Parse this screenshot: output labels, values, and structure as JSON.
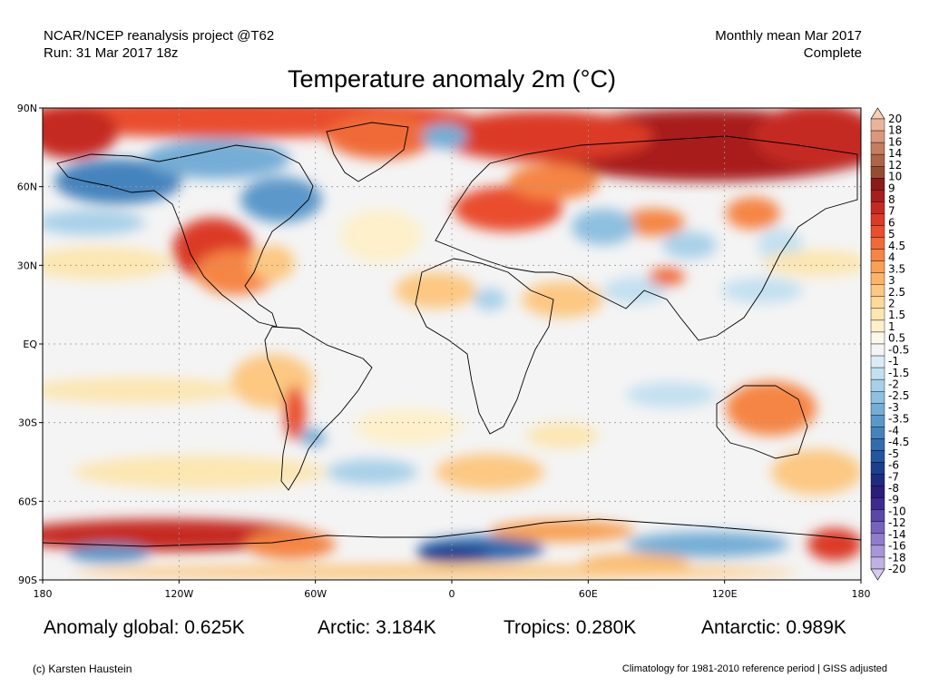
{
  "header": {
    "left_line1": "NCAR/NCEP reanalysis project @T62",
    "left_line2": "Run: 31 Mar 2017 18z",
    "right_line1": "Monthly mean Mar 2017",
    "right_line2": "Complete"
  },
  "title": "Temperature anomaly 2m (°C)",
  "map": {
    "lat_ticks": [
      "90N",
      "60N",
      "30N",
      "EQ",
      "30S",
      "60S",
      "90S"
    ],
    "lon_ticks": [
      "180",
      "120W",
      "60W",
      "0",
      "60E",
      "120E",
      "180"
    ],
    "colors": {
      "ocean_neutral": "#f4f4f4",
      "coast": "#000000",
      "grid": "#999999"
    }
  },
  "colorbar": {
    "levels": [
      "20",
      "18",
      "16",
      "14",
      "12",
      "10",
      "9",
      "8",
      "7",
      "6",
      "5",
      "4.5",
      "4",
      "3.5",
      "3",
      "2.5",
      "2",
      "1.5",
      "1",
      "0.5",
      "-0.5",
      "-1",
      "-1.5",
      "-2",
      "-2.5",
      "-3",
      "-3.5",
      "-4",
      "-4.5",
      "-5",
      "-6",
      "-7",
      "-8",
      "-9",
      "-10",
      "-12",
      "-14",
      "-16",
      "-18",
      "-20"
    ],
    "colors": [
      "#f6cdb5",
      "#eab49a",
      "#d9987c",
      "#c47d5f",
      "#ae6446",
      "#964c32",
      "#8b1a1a",
      "#a81d1d",
      "#c52a22",
      "#db3a26",
      "#e94e2d",
      "#f06a37",
      "#f58544",
      "#f8a055",
      "#fbb56a",
      "#fcc882",
      "#fdd99a",
      "#fce6b1",
      "#fdf0cb",
      "#fbf8ea",
      "#f4f4f4",
      "#dbecf6",
      "#c3e0f0",
      "#a8d0e8",
      "#8ec0e0",
      "#74add6",
      "#5b98ca",
      "#4583bd",
      "#336cae",
      "#24559f",
      "#1b3f8f",
      "#1f2a82",
      "#2b1d7a",
      "#3d2a8f",
      "#5a47a8",
      "#7762bd",
      "#917ccc",
      "#a996d8",
      "#c1b1e3",
      "#d8cced"
    ]
  },
  "stats": {
    "global": "Anomaly global: 0.625K",
    "arctic": "Arctic: 3.184K",
    "tropics": "Tropics: 0.280K",
    "antarctic": "Antarctic: 0.989K"
  },
  "footer": {
    "left": "(c) Karsten Haustein",
    "right": "Climatology for 1981-2010 reference period | GISS adjusted"
  }
}
